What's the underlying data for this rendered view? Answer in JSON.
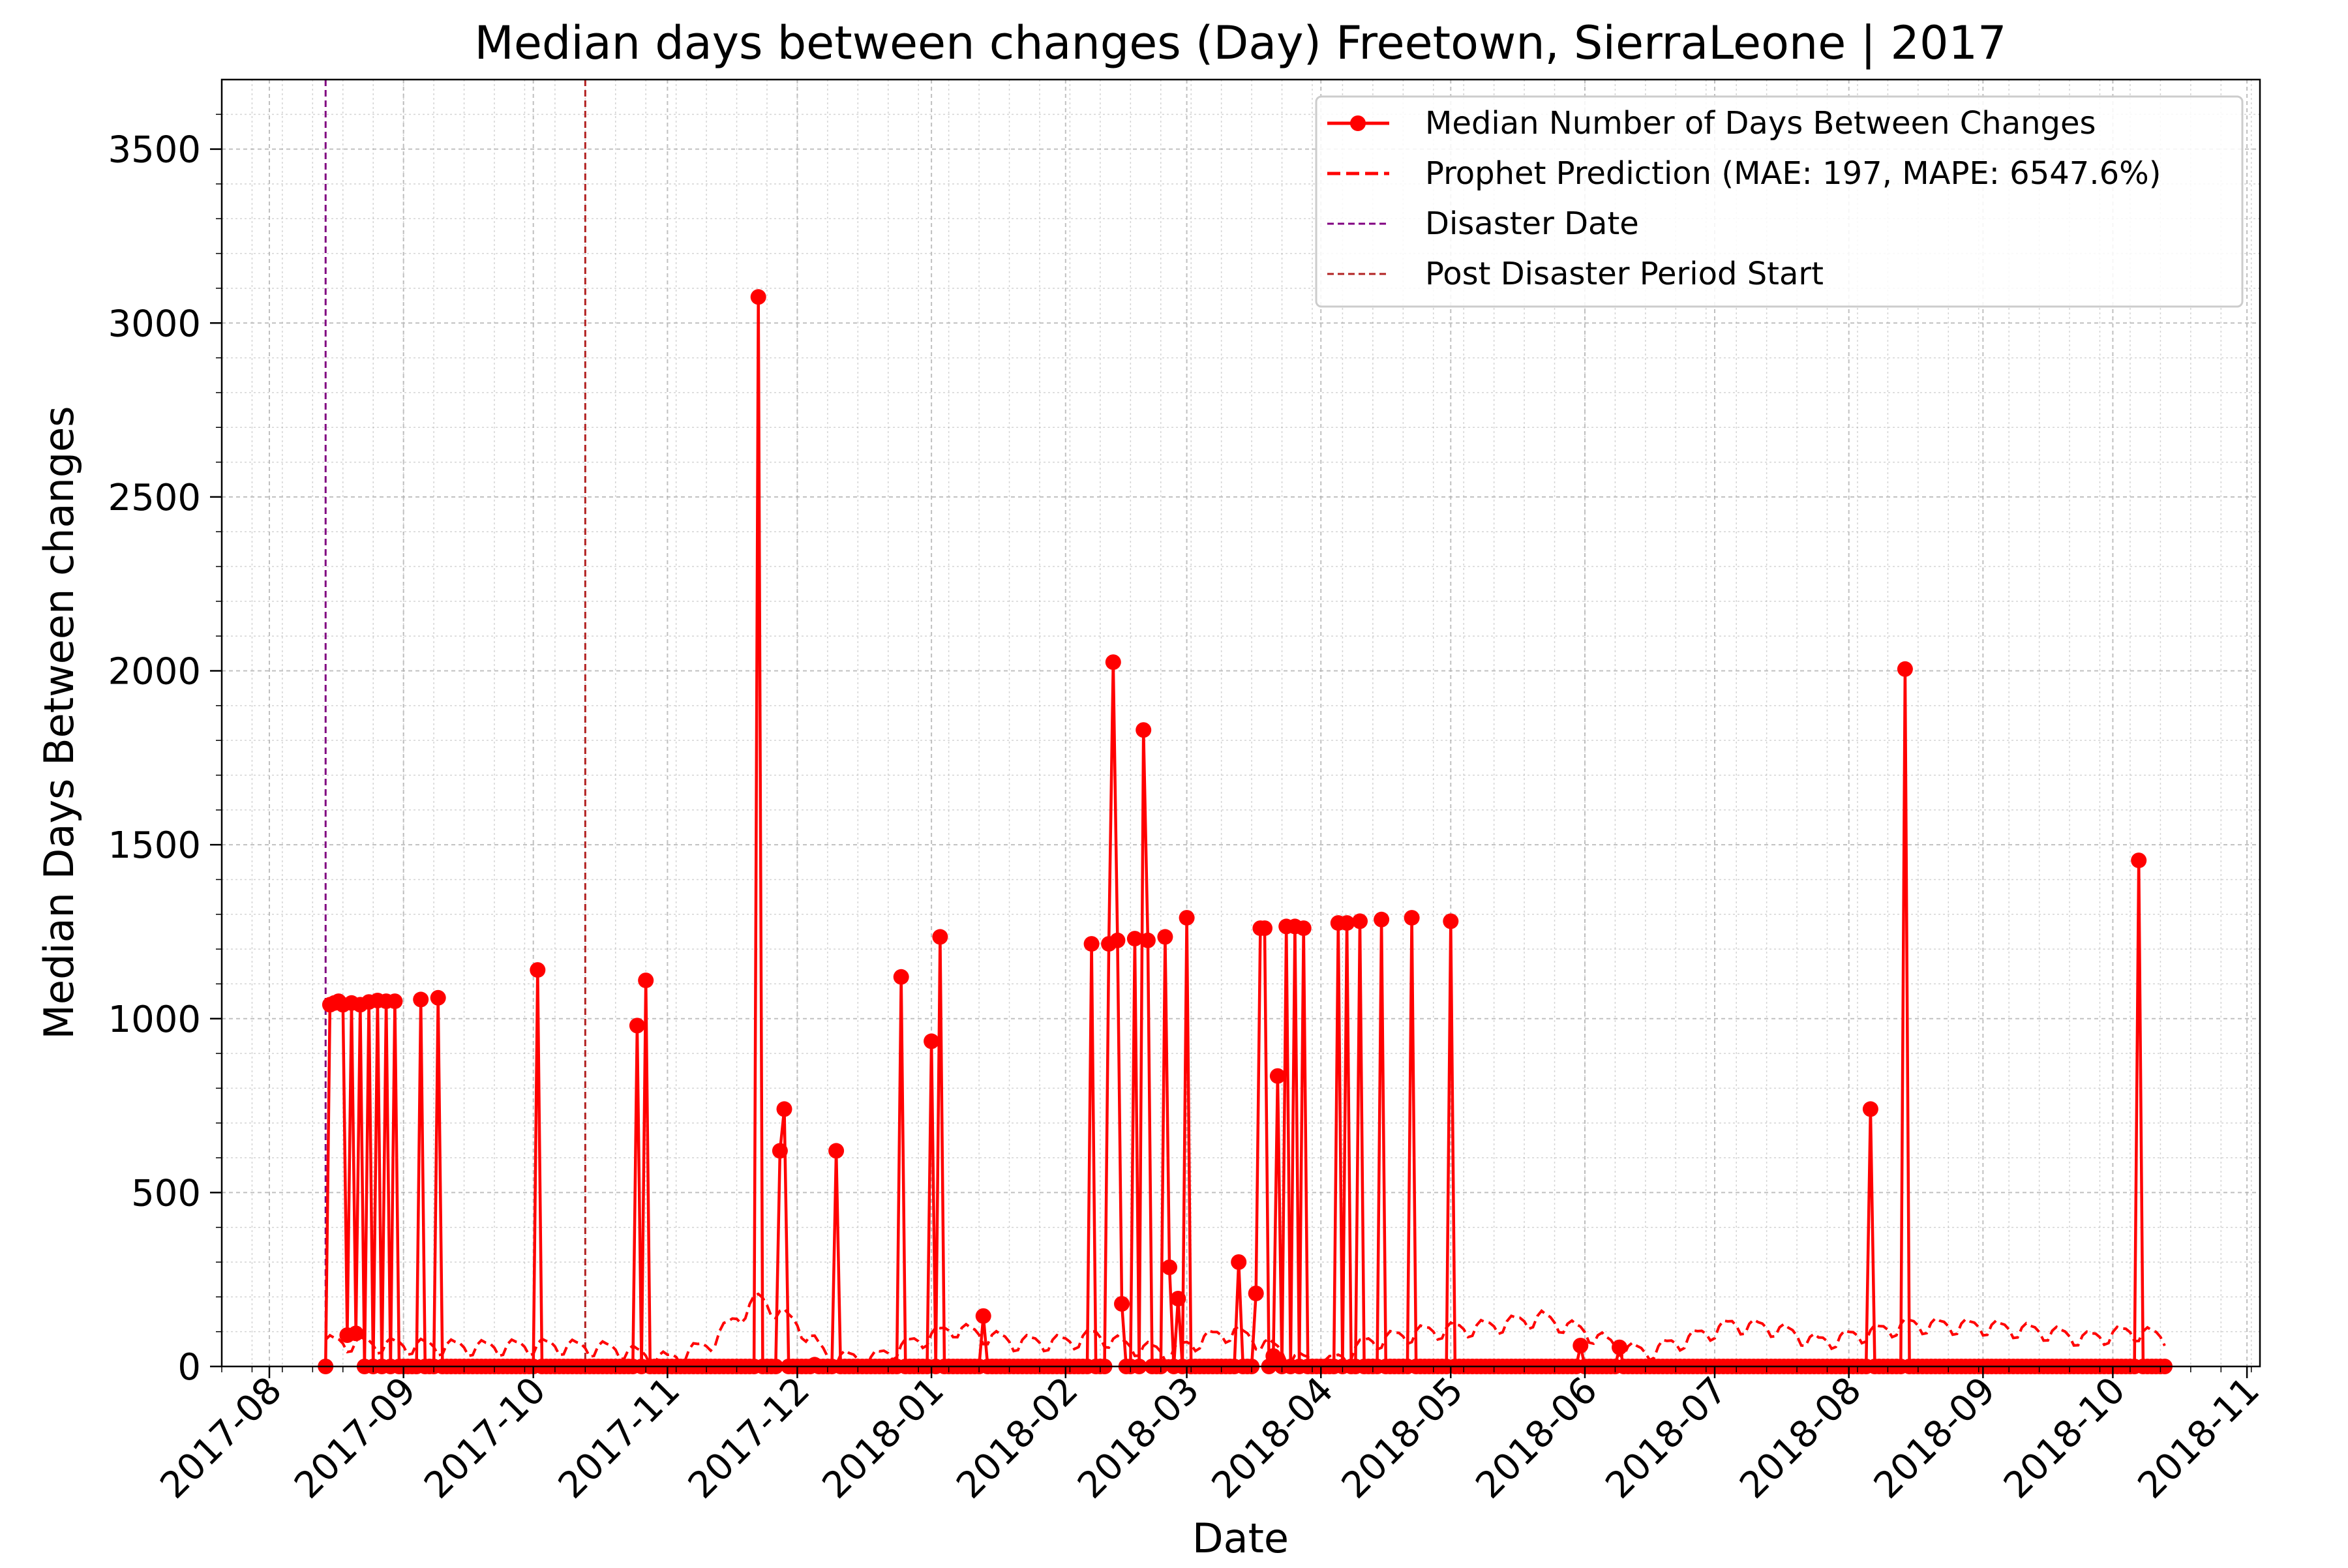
{
  "chart_data": {
    "type": "line",
    "title": "Median days between changes (Day) Freetown, SierraLeone | 2017",
    "xlabel": "Date",
    "ylabel": "Median Days Between changes",
    "xlim": [
      "2017-07-21",
      "2018-11-04"
    ],
    "ylim": [
      0,
      3700
    ],
    "grid": true,
    "legend_position": "top-right",
    "x_ticks": [
      "2017-08",
      "2017-09",
      "2017-10",
      "2017-11",
      "2017-12",
      "2018-01",
      "2018-02",
      "2018-03",
      "2018-04",
      "2018-05",
      "2018-06",
      "2018-07",
      "2018-08",
      "2018-09",
      "2018-10",
      "2018-11"
    ],
    "y_ticks": [
      0,
      500,
      1000,
      1500,
      2000,
      2500,
      3000,
      3500
    ],
    "colors": {
      "observed": "#ff0000",
      "prophet": "#ff0000",
      "disaster": "#800080",
      "post_disaster": "#b22222",
      "grid": "#b0b0b0"
    },
    "legend": [
      {
        "label": "Median Number of Days Between Changes",
        "style": "solid-marker",
        "color": "#ff0000"
      },
      {
        "label": "Prophet Prediction (MAE: 197, MAPE: 6547.6%)",
        "style": "dashed",
        "color": "#ff0000"
      },
      {
        "label": "Disaster Date",
        "style": "dashed-thin",
        "color": "#800080"
      },
      {
        "label": "Post Disaster Period Start",
        "style": "dashed-thin",
        "color": "#b22222"
      }
    ],
    "vlines": [
      {
        "name": "Disaster Date",
        "x": "2017-08-14",
        "color": "#800080"
      },
      {
        "name": "Post Disaster Period Start",
        "x": "2017-10-13",
        "color": "#b22222"
      }
    ],
    "series": [
      {
        "name": "Median Number of Days Between Changes",
        "x_start": "2017-08-14",
        "x_end": "2018-10-13",
        "baseline": 0,
        "spikes": [
          [
            "2017-08-15",
            1040
          ],
          [
            "2017-08-16",
            1045
          ],
          [
            "2017-08-17",
            1050
          ],
          [
            "2017-08-18",
            1040
          ],
          [
            "2017-08-19",
            90
          ],
          [
            "2017-08-20",
            1045
          ],
          [
            "2017-08-21",
            95
          ],
          [
            "2017-08-22",
            1040
          ],
          [
            "2017-08-24",
            1048
          ],
          [
            "2017-08-26",
            1052
          ],
          [
            "2017-08-28",
            1050
          ],
          [
            "2017-08-30",
            1050
          ],
          [
            "2017-09-05",
            1055
          ],
          [
            "2017-09-09",
            1060
          ],
          [
            "2017-10-02",
            1140
          ],
          [
            "2017-10-25",
            980
          ],
          [
            "2017-10-27",
            1110
          ],
          [
            "2017-11-22",
            3075
          ],
          [
            "2017-11-27",
            620
          ],
          [
            "2017-11-28",
            740
          ],
          [
            "2017-12-05",
            5
          ],
          [
            "2017-12-10",
            620
          ],
          [
            "2017-12-25",
            1120
          ],
          [
            "2018-01-01",
            935
          ],
          [
            "2018-01-03",
            1235
          ],
          [
            "2018-01-13",
            145
          ],
          [
            "2018-02-07",
            1215
          ],
          [
            "2018-02-11",
            1215
          ],
          [
            "2018-02-12",
            2025
          ],
          [
            "2018-02-13",
            1225
          ],
          [
            "2018-02-14",
            180
          ],
          [
            "2018-02-17",
            1230
          ],
          [
            "2018-02-19",
            1830
          ],
          [
            "2018-02-20",
            1225
          ],
          [
            "2018-02-24",
            1235
          ],
          [
            "2018-02-25",
            285
          ],
          [
            "2018-02-27",
            195
          ],
          [
            "2018-03-01",
            1290
          ],
          [
            "2018-03-13",
            300
          ],
          [
            "2018-03-17",
            210
          ],
          [
            "2018-03-18",
            1260
          ],
          [
            "2018-03-19",
            1260
          ],
          [
            "2018-03-21",
            30
          ],
          [
            "2018-03-22",
            835
          ],
          [
            "2018-03-24",
            1265
          ],
          [
            "2018-03-26",
            1265
          ],
          [
            "2018-03-28",
            1260
          ],
          [
            "2018-04-05",
            1275
          ],
          [
            "2018-04-07",
            1275
          ],
          [
            "2018-04-10",
            1280
          ],
          [
            "2018-04-15",
            1285
          ],
          [
            "2018-04-22",
            1290
          ],
          [
            "2018-05-01",
            1280
          ],
          [
            "2018-05-31",
            60
          ],
          [
            "2018-06-09",
            55
          ],
          [
            "2018-08-06",
            740
          ],
          [
            "2018-08-14",
            2005
          ],
          [
            "2018-10-07",
            1455
          ]
        ]
      },
      {
        "name": "Prophet Prediction",
        "x_start": "2017-08-14",
        "x_end": "2018-10-13",
        "anchors": [
          [
            "2017-08-14",
            70
          ],
          [
            "2017-09-01",
            60
          ],
          [
            "2017-09-20",
            55
          ],
          [
            "2017-10-05",
            60
          ],
          [
            "2017-10-20",
            50
          ],
          [
            "2017-11-01",
            20
          ],
          [
            "2017-11-10",
            60
          ],
          [
            "2017-11-18",
            150
          ],
          [
            "2017-11-22",
            195
          ],
          [
            "2017-12-01",
            120
          ],
          [
            "2017-12-08",
            30
          ],
          [
            "2017-12-18",
            20
          ],
          [
            "2017-12-28",
            70
          ],
          [
            "2018-01-06",
            110
          ],
          [
            "2018-01-20",
            70
          ],
          [
            "2018-02-01",
            70
          ],
          [
            "2018-02-08",
            90
          ],
          [
            "2018-02-15",
            60
          ],
          [
            "2018-02-25",
            40
          ],
          [
            "2018-03-05",
            80
          ],
          [
            "2018-03-12",
            100
          ],
          [
            "2018-03-20",
            60
          ],
          [
            "2018-03-27",
            20
          ],
          [
            "2018-04-03",
            10
          ],
          [
            "2018-04-12",
            70
          ],
          [
            "2018-04-25",
            100
          ],
          [
            "2018-05-10",
            115
          ],
          [
            "2018-05-22",
            140
          ],
          [
            "2018-06-01",
            100
          ],
          [
            "2018-06-08",
            60
          ],
          [
            "2018-06-15",
            40
          ],
          [
            "2018-06-25",
            80
          ],
          [
            "2018-07-05",
            120
          ],
          [
            "2018-07-15",
            110
          ],
          [
            "2018-07-25",
            70
          ],
          [
            "2018-08-05",
            95
          ],
          [
            "2018-08-15",
            120
          ],
          [
            "2018-09-01",
            115
          ],
          [
            "2018-09-15",
            100
          ],
          [
            "2018-09-25",
            80
          ],
          [
            "2018-10-05",
            100
          ],
          [
            "2018-10-13",
            85
          ]
        ]
      }
    ]
  }
}
